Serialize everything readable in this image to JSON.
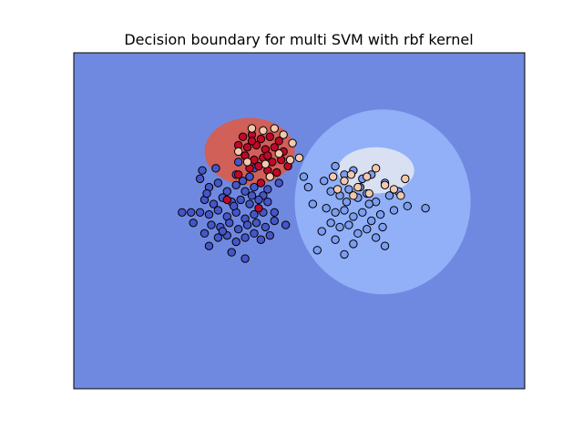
{
  "chart_data": {
    "type": "scatter",
    "title": "Decision boundary for multi SVM with rbf kernel",
    "xlabel": "",
    "ylabel": "",
    "xlim": [
      -4.5,
      5.5
    ],
    "ylim": [
      -4.5,
      3.5
    ],
    "grid": false,
    "axis_ticks": "none",
    "colors": {
      "background_region": "#7089e0",
      "class1_region": "#91b0f8",
      "class2_region": "#d8e0f2",
      "class3_region": "#d06058",
      "class0_point": "#4656c8",
      "class1_point": "#7c9ef0",
      "class2_point": "#f2c9b0",
      "class3_point": "#c0092a",
      "point_edge": "#000000"
    },
    "regions": [
      {
        "class": 3,
        "shape": "blob",
        "cx": -0.6,
        "cy": 1.15,
        "rx": 1.0,
        "ry": 0.8
      },
      {
        "class": 1,
        "shape": "blob",
        "cx": 2.35,
        "cy": -0.05,
        "rx": 1.95,
        "ry": 2.2
      },
      {
        "class": 2,
        "shape": "blob",
        "cx": 2.2,
        "cy": 0.7,
        "rx": 0.85,
        "ry": 0.55
      }
    ],
    "series": [
      {
        "class": 0,
        "points": [
          [
            -1.7,
            0.5
          ],
          [
            -1.5,
            0.3
          ],
          [
            -1.3,
            0.4
          ],
          [
            -1.1,
            0.2
          ],
          [
            -0.9,
            0.35
          ],
          [
            -0.7,
            0.2
          ],
          [
            -0.5,
            0.3
          ],
          [
            -0.3,
            0.1
          ],
          [
            -1.6,
            0.0
          ],
          [
            -1.4,
            -0.1
          ],
          [
            -1.2,
            0.05
          ],
          [
            -1.0,
            -0.05
          ],
          [
            -0.8,
            0.0
          ],
          [
            -0.6,
            -0.1
          ],
          [
            -0.4,
            0.0
          ],
          [
            -0.2,
            -0.05
          ],
          [
            -1.7,
            -0.3
          ],
          [
            -1.5,
            -0.35
          ],
          [
            -1.3,
            -0.25
          ],
          [
            -1.1,
            -0.4
          ],
          [
            -0.9,
            -0.3
          ],
          [
            -0.7,
            -0.45
          ],
          [
            -0.5,
            -0.35
          ],
          [
            -0.3,
            -0.3
          ],
          [
            -1.45,
            -0.6
          ],
          [
            -1.25,
            -0.65
          ],
          [
            -1.05,
            -0.55
          ],
          [
            -0.85,
            -0.7
          ],
          [
            -0.65,
            -0.6
          ],
          [
            -0.45,
            -0.55
          ],
          [
            -0.25,
            -0.65
          ],
          [
            -0.05,
            -0.5
          ],
          [
            -1.3,
            -0.9
          ],
          [
            -1.1,
            -0.85
          ],
          [
            -0.9,
            -1.0
          ],
          [
            -0.7,
            -0.9
          ],
          [
            -0.5,
            -0.8
          ],
          [
            -1.9,
            -0.3
          ],
          [
            -2.1,
            -0.3
          ],
          [
            -1.85,
            -0.55
          ],
          [
            -1.65,
            0.7
          ],
          [
            -1.35,
            0.75
          ],
          [
            -0.9,
            0.6
          ],
          [
            -0.6,
            0.55
          ],
          [
            -1.5,
            -1.1
          ],
          [
            -1.0,
            -1.25
          ],
          [
            -0.7,
            -1.4
          ],
          [
            0.2,
            -0.6
          ],
          [
            -0.2,
            0.25
          ],
          [
            -0.05,
            -0.3
          ],
          [
            -1.2,
            -0.75
          ],
          [
            -0.55,
            0.1
          ],
          [
            -1.55,
            0.15
          ],
          [
            -0.15,
            -0.85
          ],
          [
            0.05,
            0.4
          ],
          [
            -0.35,
            -0.95
          ],
          [
            -0.85,
            0.9
          ],
          [
            -0.5,
            0.75
          ],
          [
            -1.6,
            -0.8
          ],
          [
            -0.95,
            -0.15
          ],
          [
            -0.75,
            0.45
          ]
        ]
      },
      {
        "class": 1,
        "points": [
          [
            1.3,
            0.8
          ],
          [
            1.5,
            0.6
          ],
          [
            1.7,
            0.7
          ],
          [
            1.9,
            0.5
          ],
          [
            2.1,
            0.6
          ],
          [
            2.4,
            0.4
          ],
          [
            1.2,
            0.2
          ],
          [
            1.4,
            0.1
          ],
          [
            1.6,
            0.25
          ],
          [
            1.8,
            0.05
          ],
          [
            2.0,
            0.15
          ],
          [
            2.2,
            -0.05
          ],
          [
            2.5,
            0.1
          ],
          [
            2.7,
            0.2
          ],
          [
            1.1,
            -0.2
          ],
          [
            1.3,
            -0.3
          ],
          [
            1.5,
            -0.25
          ],
          [
            1.7,
            -0.4
          ],
          [
            1.9,
            -0.3
          ],
          [
            2.1,
            -0.5
          ],
          [
            2.3,
            -0.35
          ],
          [
            2.6,
            -0.25
          ],
          [
            1.2,
            -0.55
          ],
          [
            1.4,
            -0.65
          ],
          [
            1.6,
            -0.6
          ],
          [
            1.8,
            -0.8
          ],
          [
            2.0,
            -0.7
          ],
          [
            2.2,
            -0.9
          ],
          [
            1.0,
            -0.75
          ],
          [
            1.3,
            -0.95
          ],
          [
            1.7,
            -1.05
          ],
          [
            2.4,
            -1.1
          ],
          [
            0.9,
            -1.2
          ],
          [
            1.5,
            -1.3
          ],
          [
            0.7,
            0.3
          ],
          [
            0.8,
            -0.1
          ],
          [
            2.9,
            -0.15
          ],
          [
            3.3,
            -0.2
          ],
          [
            1.05,
            0.45
          ],
          [
            2.05,
            -0.1
          ],
          [
            1.55,
            -0.05
          ],
          [
            0.6,
            0.55
          ],
          [
            1.85,
            0.3
          ],
          [
            2.35,
            -0.65
          ]
        ]
      },
      {
        "class": 2,
        "points": [
          [
            1.5,
            0.45
          ],
          [
            1.8,
            0.3
          ],
          [
            2.0,
            0.55
          ],
          [
            2.2,
            0.75
          ],
          [
            2.4,
            0.35
          ],
          [
            2.6,
            0.25
          ],
          [
            2.75,
            0.1
          ],
          [
            1.35,
            0.25
          ],
          [
            1.7,
            0.1
          ],
          [
            2.05,
            0.15
          ],
          [
            1.65,
            0.6
          ],
          [
            2.85,
            0.5
          ],
          [
            1.25,
            0.55
          ]
        ]
      },
      {
        "class": 3,
        "points": [
          [
            -0.75,
            1.5
          ],
          [
            -0.55,
            1.55
          ],
          [
            -0.35,
            1.45
          ],
          [
            -0.15,
            1.5
          ],
          [
            0.05,
            1.4
          ],
          [
            -0.65,
            1.25
          ],
          [
            -0.45,
            1.3
          ],
          [
            -0.25,
            1.2
          ],
          [
            -0.05,
            1.25
          ],
          [
            0.15,
            1.15
          ],
          [
            -0.7,
            1.05
          ],
          [
            -0.5,
            0.95
          ],
          [
            -0.3,
            1.0
          ],
          [
            -0.1,
            0.9
          ],
          [
            0.1,
            0.95
          ],
          [
            -0.6,
            0.75
          ],
          [
            -0.4,
            0.8
          ],
          [
            -0.2,
            0.7
          ],
          [
            -0.85,
            0.6
          ],
          [
            0.0,
            0.65
          ],
          [
            -0.35,
            0.4
          ],
          [
            -0.55,
            1.4
          ],
          [
            -0.85,
            1.3
          ],
          [
            -0.2,
            1.05
          ],
          [
            -0.4,
            -0.2
          ],
          [
            -1.1,
            0.0
          ],
          [
            0.25,
            0.8
          ]
        ]
      },
      {
        "class": 2,
        "points": [
          [
            -0.55,
            1.7
          ],
          [
            -0.3,
            1.65
          ],
          [
            -0.05,
            1.7
          ],
          [
            0.15,
            1.55
          ],
          [
            0.35,
            1.35
          ],
          [
            0.5,
            1.0
          ],
          [
            0.3,
            0.95
          ],
          [
            -0.85,
            1.15
          ],
          [
            -0.65,
            0.9
          ],
          [
            -0.25,
            0.85
          ],
          [
            0.05,
            1.1
          ],
          [
            -0.15,
            0.55
          ]
        ]
      }
    ]
  }
}
